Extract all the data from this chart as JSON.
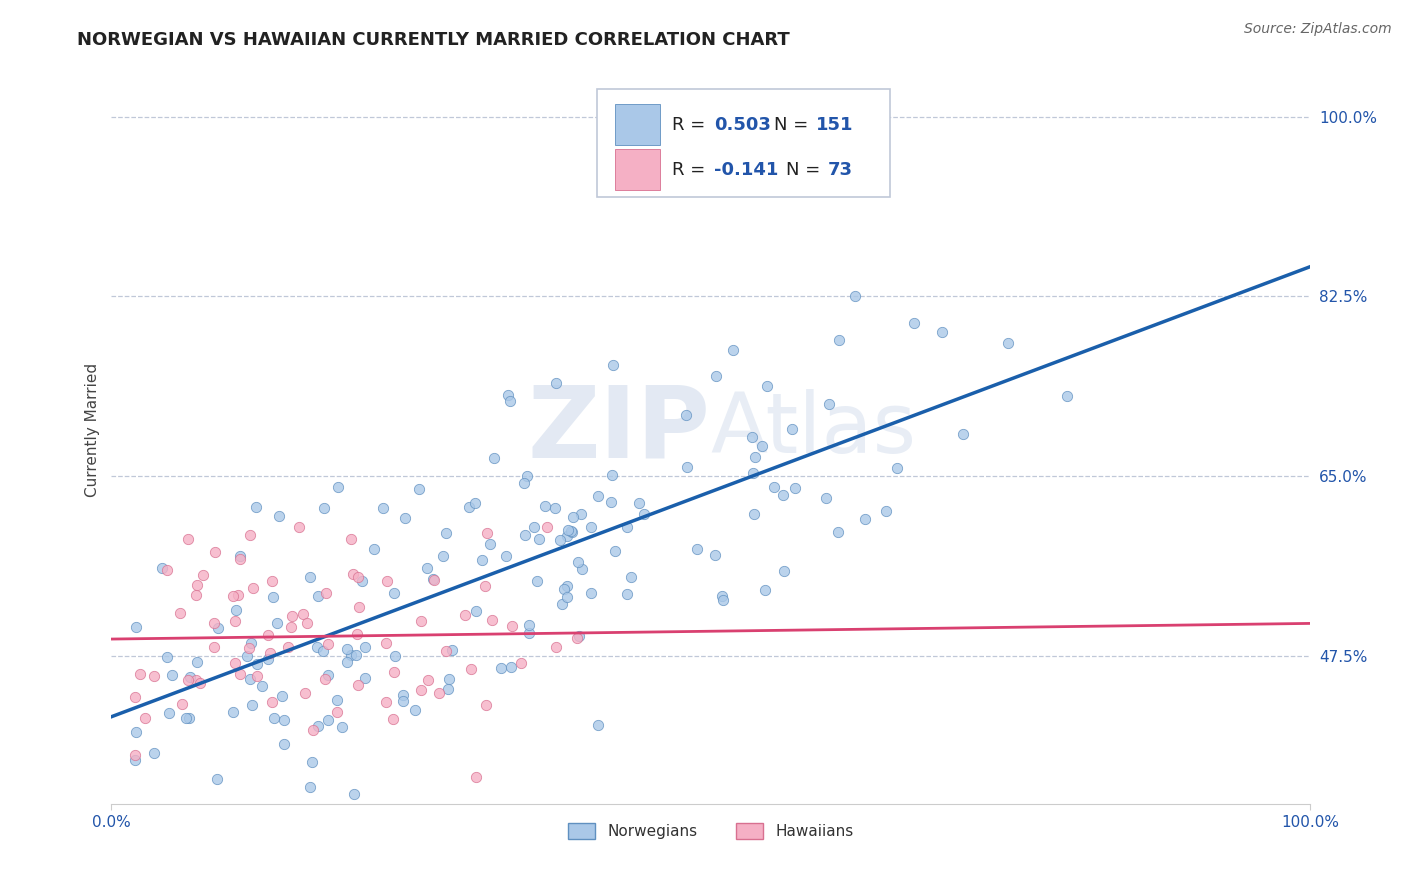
{
  "title": "NORWEGIAN VS HAWAIIAN CURRENTLY MARRIED CORRELATION CHART",
  "source": "Source: ZipAtlas.com",
  "ylabel": "Currently Married",
  "yticks": [
    0.475,
    0.65,
    0.825,
    1.0
  ],
  "ytick_labels": [
    "47.5%",
    "65.0%",
    "82.5%",
    "100.0%"
  ],
  "xmin": 0.0,
  "xmax": 1.0,
  "ymin": 0.33,
  "ymax": 1.06,
  "norwegian_color": "#aac8e8",
  "hawaiian_color": "#f5b0c5",
  "norwegian_edge": "#6090c0",
  "hawaiian_edge": "#d87090",
  "trend_norwegian_color": "#1a5fab",
  "trend_hawaiian_color": "#d94070",
  "legend_R1": "R = 0.503",
  "legend_N1": "N = 151",
  "legend_R2": "R = -0.141",
  "legend_N2": "N = 73",
  "legend_label1": "Norwegians",
  "legend_label2": "Hawaiians",
  "watermark_zip": "ZIP",
  "watermark_atlas": "Atlas",
  "title_fontsize": 13,
  "axis_label_fontsize": 11,
  "tick_fontsize": 11,
  "source_fontsize": 10,
  "norwegian_intercept": 0.498,
  "norwegian_slope": 0.178,
  "hawaiian_intercept": 0.5,
  "hawaiian_slope": -0.045,
  "dot_size": 55
}
